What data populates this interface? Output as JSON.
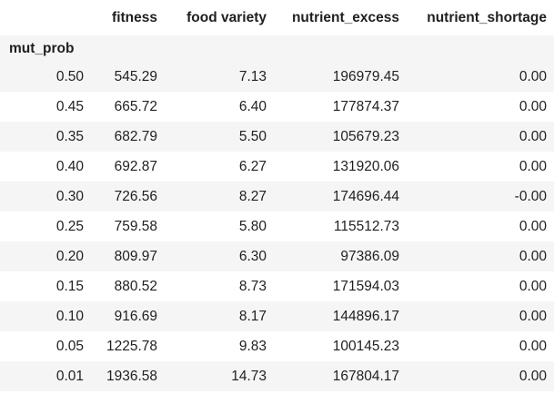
{
  "table": {
    "columns": [
      "fitness",
      "food variety",
      "nutrient_excess",
      "nutrient_shortage"
    ],
    "index_name": "mut_prob",
    "rows": [
      {
        "index": "0.50",
        "cells": [
          "545.29",
          "7.13",
          "196979.45",
          "0.00"
        ]
      },
      {
        "index": "0.45",
        "cells": [
          "665.72",
          "6.40",
          "177874.37",
          "0.00"
        ]
      },
      {
        "index": "0.35",
        "cells": [
          "682.79",
          "5.50",
          "105679.23",
          "0.00"
        ]
      },
      {
        "index": "0.40",
        "cells": [
          "692.87",
          "6.27",
          "131920.06",
          "0.00"
        ]
      },
      {
        "index": "0.30",
        "cells": [
          "726.56",
          "8.27",
          "174696.44",
          "-0.00"
        ]
      },
      {
        "index": "0.25",
        "cells": [
          "759.58",
          "5.80",
          "115512.73",
          "0.00"
        ]
      },
      {
        "index": "0.20",
        "cells": [
          "809.97",
          "6.30",
          "97386.09",
          "0.00"
        ]
      },
      {
        "index": "0.15",
        "cells": [
          "880.52",
          "8.73",
          "171594.03",
          "0.00"
        ]
      },
      {
        "index": "0.10",
        "cells": [
          "916.69",
          "8.17",
          "144896.17",
          "0.00"
        ]
      },
      {
        "index": "0.05",
        "cells": [
          "1225.78",
          "9.83",
          "100145.23",
          "0.00"
        ]
      },
      {
        "index": "0.01",
        "cells": [
          "1936.58",
          "14.73",
          "167804.17",
          "0.00"
        ]
      }
    ]
  }
}
